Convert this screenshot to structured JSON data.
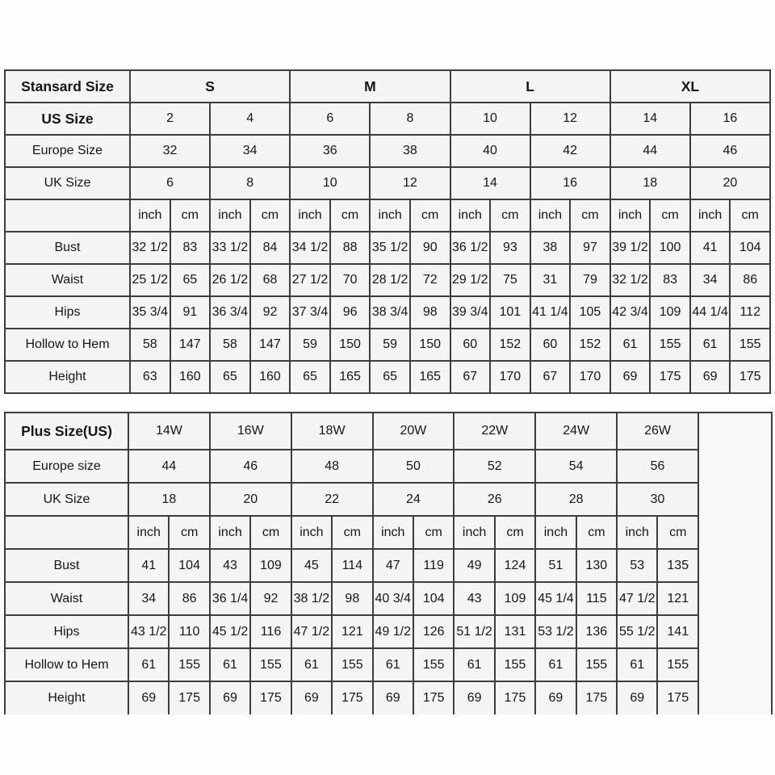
{
  "colors": {
    "border": "#3d3d3d",
    "cell_background": "#f5f5f5",
    "text": "#151515",
    "page_background": "#fefefe"
  },
  "chart_data": [
    {
      "type": "table",
      "title": "Stansard Size",
      "legend_note": "standard sizes S-XL, measurements in inch and cm",
      "grid": [
        [
          {
            "t": "Stansard Size",
            "b": true
          },
          {
            "t": "S",
            "b": true,
            "cs": 4
          },
          {
            "t": "M",
            "b": true,
            "cs": 4
          },
          {
            "t": "L",
            "b": true,
            "cs": 4
          },
          {
            "t": "XL",
            "b": true,
            "cs": 4
          }
        ],
        [
          {
            "t": "US Size",
            "b": true
          },
          {
            "t": "2",
            "cs": 2
          },
          {
            "t": "4",
            "cs": 2
          },
          {
            "t": "6",
            "cs": 2
          },
          {
            "t": "8",
            "cs": 2
          },
          {
            "t": "10",
            "cs": 2
          },
          {
            "t": "12",
            "cs": 2
          },
          {
            "t": "14",
            "cs": 2
          },
          {
            "t": "16",
            "cs": 2
          }
        ],
        [
          {
            "t": "Europe Size"
          },
          {
            "t": "32",
            "cs": 2
          },
          {
            "t": "34",
            "cs": 2
          },
          {
            "t": "36",
            "cs": 2
          },
          {
            "t": "38",
            "cs": 2
          },
          {
            "t": "40",
            "cs": 2
          },
          {
            "t": "42",
            "cs": 2
          },
          {
            "t": "44",
            "cs": 2
          },
          {
            "t": "46",
            "cs": 2
          }
        ],
        [
          {
            "t": "UK Size"
          },
          {
            "t": "6",
            "cs": 2
          },
          {
            "t": "8",
            "cs": 2
          },
          {
            "t": "10",
            "cs": 2
          },
          {
            "t": "12",
            "cs": 2
          },
          {
            "t": "14",
            "cs": 2
          },
          {
            "t": "16",
            "cs": 2
          },
          {
            "t": "18",
            "cs": 2
          },
          {
            "t": "20",
            "cs": 2
          }
        ],
        [
          {
            "t": ""
          },
          {
            "t": "inch"
          },
          {
            "t": "cm"
          },
          {
            "t": "inch"
          },
          {
            "t": "cm"
          },
          {
            "t": "inch"
          },
          {
            "t": "cm"
          },
          {
            "t": "inch"
          },
          {
            "t": "cm"
          },
          {
            "t": "inch"
          },
          {
            "t": "cm"
          },
          {
            "t": "inch"
          },
          {
            "t": "cm"
          },
          {
            "t": "inch"
          },
          {
            "t": "cm"
          },
          {
            "t": "inch"
          },
          {
            "t": "cm"
          }
        ],
        [
          {
            "t": "Bust"
          },
          {
            "t": "32 1/2"
          },
          {
            "t": "83"
          },
          {
            "t": "33 1/2"
          },
          {
            "t": "84"
          },
          {
            "t": "34 1/2"
          },
          {
            "t": "88"
          },
          {
            "t": "35 1/2"
          },
          {
            "t": "90"
          },
          {
            "t": "36 1/2"
          },
          {
            "t": "93"
          },
          {
            "t": "38"
          },
          {
            "t": "97"
          },
          {
            "t": "39 1/2"
          },
          {
            "t": "100"
          },
          {
            "t": "41"
          },
          {
            "t": "104"
          }
        ],
        [
          {
            "t": "Waist"
          },
          {
            "t": "25 1/2"
          },
          {
            "t": "65"
          },
          {
            "t": "26 1/2"
          },
          {
            "t": "68"
          },
          {
            "t": "27 1/2"
          },
          {
            "t": "70"
          },
          {
            "t": "28 1/2"
          },
          {
            "t": "72"
          },
          {
            "t": "29 1/2"
          },
          {
            "t": "75"
          },
          {
            "t": "31"
          },
          {
            "t": "79"
          },
          {
            "t": "32 1/2"
          },
          {
            "t": "83"
          },
          {
            "t": "34"
          },
          {
            "t": "86"
          }
        ],
        [
          {
            "t": "Hips"
          },
          {
            "t": "35 3/4"
          },
          {
            "t": "91"
          },
          {
            "t": "36 3/4"
          },
          {
            "t": "92"
          },
          {
            "t": "37 3/4"
          },
          {
            "t": "96"
          },
          {
            "t": "38 3/4"
          },
          {
            "t": "98"
          },
          {
            "t": "39 3/4"
          },
          {
            "t": "101"
          },
          {
            "t": "41 1/4"
          },
          {
            "t": "105"
          },
          {
            "t": "42 3/4"
          },
          {
            "t": "109"
          },
          {
            "t": "44 1/4"
          },
          {
            "t": "112"
          }
        ],
        [
          {
            "t": "Hollow to Hem"
          },
          {
            "t": "58"
          },
          {
            "t": "147"
          },
          {
            "t": "58"
          },
          {
            "t": "147"
          },
          {
            "t": "59"
          },
          {
            "t": "150"
          },
          {
            "t": "59"
          },
          {
            "t": "150"
          },
          {
            "t": "60"
          },
          {
            "t": "152"
          },
          {
            "t": "60"
          },
          {
            "t": "152"
          },
          {
            "t": "61"
          },
          {
            "t": "155"
          },
          {
            "t": "61"
          },
          {
            "t": "155"
          }
        ],
        [
          {
            "t": "Height"
          },
          {
            "t": "63"
          },
          {
            "t": "160"
          },
          {
            "t": "65"
          },
          {
            "t": "160"
          },
          {
            "t": "65"
          },
          {
            "t": "165"
          },
          {
            "t": "65"
          },
          {
            "t": "165"
          },
          {
            "t": "67"
          },
          {
            "t": "170"
          },
          {
            "t": "67"
          },
          {
            "t": "170"
          },
          {
            "t": "69"
          },
          {
            "t": "175"
          },
          {
            "t": "69"
          },
          {
            "t": "175"
          }
        ]
      ]
    },
    {
      "type": "table",
      "title": "Plus Size(US)",
      "legend_note": "plus sizes 14W-26W, measurements in inch and cm",
      "grid": [
        [
          {
            "t": "Plus Size(US)",
            "b": true
          },
          {
            "t": "14W",
            "cs": 2
          },
          {
            "t": "16W",
            "cs": 2
          },
          {
            "t": "18W",
            "cs": 2
          },
          {
            "t": "20W",
            "cs": 2
          },
          {
            "t": "22W",
            "cs": 2
          },
          {
            "t": "24W",
            "cs": 2
          },
          {
            "t": "26W",
            "cs": 2
          },
          {
            "t": "",
            "rs": 9,
            "cls": "spacer"
          }
        ],
        [
          {
            "t": "Europe size"
          },
          {
            "t": "44",
            "cs": 2
          },
          {
            "t": "46",
            "cs": 2
          },
          {
            "t": "48",
            "cs": 2
          },
          {
            "t": "50",
            "cs": 2
          },
          {
            "t": "52",
            "cs": 2
          },
          {
            "t": "54",
            "cs": 2
          },
          {
            "t": "56",
            "cs": 2
          }
        ],
        [
          {
            "t": "UK Size"
          },
          {
            "t": "18",
            "cs": 2
          },
          {
            "t": "20",
            "cs": 2
          },
          {
            "t": "22",
            "cs": 2
          },
          {
            "t": "24",
            "cs": 2
          },
          {
            "t": "26",
            "cs": 2
          },
          {
            "t": "28",
            "cs": 2
          },
          {
            "t": "30",
            "cs": 2
          }
        ],
        [
          {
            "t": ""
          },
          {
            "t": "inch"
          },
          {
            "t": "cm"
          },
          {
            "t": "inch"
          },
          {
            "t": "cm"
          },
          {
            "t": "inch"
          },
          {
            "t": "cm"
          },
          {
            "t": "inch"
          },
          {
            "t": "cm"
          },
          {
            "t": "inch"
          },
          {
            "t": "cm"
          },
          {
            "t": "inch"
          },
          {
            "t": "cm"
          },
          {
            "t": "inch"
          },
          {
            "t": "cm"
          }
        ],
        [
          {
            "t": "Bust"
          },
          {
            "t": "41"
          },
          {
            "t": "104"
          },
          {
            "t": "43"
          },
          {
            "t": "109"
          },
          {
            "t": "45"
          },
          {
            "t": "114"
          },
          {
            "t": "47"
          },
          {
            "t": "119"
          },
          {
            "t": "49"
          },
          {
            "t": "124"
          },
          {
            "t": "51"
          },
          {
            "t": "130"
          },
          {
            "t": "53"
          },
          {
            "t": "135"
          }
        ],
        [
          {
            "t": "Waist"
          },
          {
            "t": "34"
          },
          {
            "t": "86"
          },
          {
            "t": "36 1/4"
          },
          {
            "t": "92"
          },
          {
            "t": "38 1/2"
          },
          {
            "t": "98"
          },
          {
            "t": "40 3/4"
          },
          {
            "t": "104"
          },
          {
            "t": "43"
          },
          {
            "t": "109"
          },
          {
            "t": "45 1/4"
          },
          {
            "t": "115"
          },
          {
            "t": "47 1/2"
          },
          {
            "t": "121"
          }
        ],
        [
          {
            "t": "Hips"
          },
          {
            "t": "43 1/2"
          },
          {
            "t": "110"
          },
          {
            "t": "45 1/2"
          },
          {
            "t": "116"
          },
          {
            "t": "47 1/2"
          },
          {
            "t": "121"
          },
          {
            "t": "49 1/2"
          },
          {
            "t": "126"
          },
          {
            "t": "51 1/2"
          },
          {
            "t": "131"
          },
          {
            "t": "53 1/2"
          },
          {
            "t": "136"
          },
          {
            "t": "55 1/2"
          },
          {
            "t": "141"
          }
        ],
        [
          {
            "t": "Hollow to Hem"
          },
          {
            "t": "61"
          },
          {
            "t": "155"
          },
          {
            "t": "61"
          },
          {
            "t": "155"
          },
          {
            "t": "61"
          },
          {
            "t": "155"
          },
          {
            "t": "61"
          },
          {
            "t": "155"
          },
          {
            "t": "61"
          },
          {
            "t": "155"
          },
          {
            "t": "61"
          },
          {
            "t": "155"
          },
          {
            "t": "61"
          },
          {
            "t": "155"
          }
        ],
        [
          {
            "t": "Height"
          },
          {
            "t": "69"
          },
          {
            "t": "175"
          },
          {
            "t": "69"
          },
          {
            "t": "175"
          },
          {
            "t": "69"
          },
          {
            "t": "175"
          },
          {
            "t": "69"
          },
          {
            "t": "175"
          },
          {
            "t": "69"
          },
          {
            "t": "175"
          },
          {
            "t": "69"
          },
          {
            "t": "175"
          },
          {
            "t": "69"
          },
          {
            "t": "175"
          }
        ]
      ]
    }
  ]
}
